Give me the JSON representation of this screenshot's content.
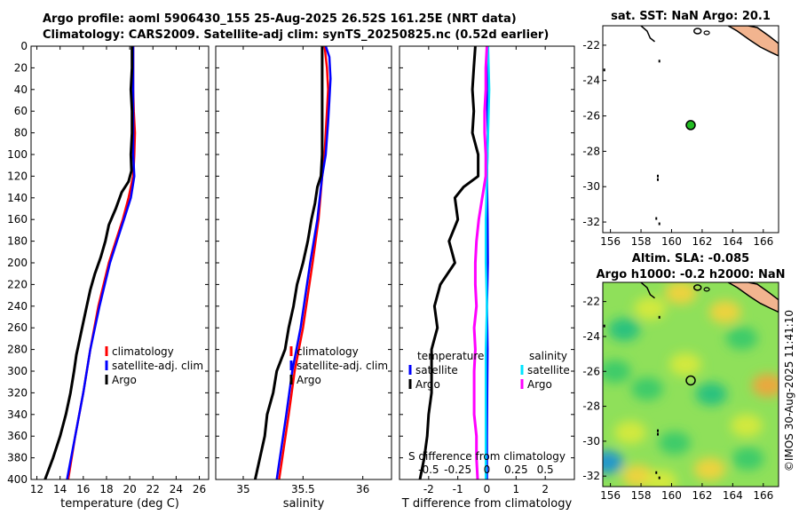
{
  "header": {
    "line1": "Argo profile: aoml 5906430_155 25-Aug-2025 26.52S 161.25E (NRT data)",
    "line2": "Climatology: CARS2009. Satellite-adj clim: synTS_20250825.nc (0.52d earlier)"
  },
  "watermark": "©IMOS 30-Aug-2025 11:41:10",
  "colors": {
    "climatology": "#ff0000",
    "satellite": "#0000ff",
    "argo": "#000000",
    "salinity_satellite": "#00e5ff",
    "salinity_argo": "#ff00ff",
    "land": "#f2b48f",
    "argo_marker": "#22bb22"
  },
  "chart_data": [
    {
      "id": "temp",
      "type": "line",
      "title": "",
      "xlabel": "temperature (deg C)",
      "ylabel": "depth",
      "xlim": [
        11.5,
        26.8
      ],
      "ylim": [
        400,
        0
      ],
      "xticks": [
        12,
        14,
        16,
        18,
        20,
        22,
        24,
        26
      ],
      "yticks": [
        0,
        20,
        40,
        60,
        80,
        100,
        120,
        140,
        160,
        180,
        200,
        220,
        240,
        260,
        280,
        300,
        320,
        340,
        360,
        380,
        400
      ],
      "legend": [
        "climatology",
        "satellite-adj. clim",
        "Argo"
      ],
      "series": [
        {
          "name": "climatology",
          "color": "#ff0000",
          "depth": [
            0,
            20,
            40,
            60,
            80,
            100,
            110,
            120,
            140,
            160,
            180,
            200,
            240,
            280,
            320,
            360,
            400
          ],
          "values": [
            20.3,
            20.3,
            20.3,
            20.35,
            20.45,
            20.4,
            20.35,
            20.3,
            19.9,
            19.4,
            18.8,
            18.2,
            17.3,
            16.6,
            16.0,
            15.3,
            14.7
          ]
        },
        {
          "name": "satellite-adj. clim",
          "color": "#0000ff",
          "depth": [
            0,
            20,
            40,
            60,
            80,
            100,
            120,
            140,
            160,
            180,
            200,
            240,
            280,
            320,
            360,
            400
          ],
          "values": [
            20.3,
            20.3,
            20.3,
            20.3,
            20.3,
            20.3,
            20.4,
            20.1,
            19.5,
            18.9,
            18.3,
            17.4,
            16.6,
            16.0,
            15.3,
            14.6
          ]
        },
        {
          "name": "Argo",
          "color": "#000000",
          "depth": [
            0,
            20,
            40,
            60,
            80,
            100,
            115,
            125,
            135,
            150,
            165,
            180,
            195,
            210,
            225,
            240,
            255,
            270,
            285,
            300,
            320,
            340,
            360,
            380,
            400
          ],
          "values": [
            20.2,
            20.2,
            20.1,
            20.2,
            20.2,
            20.1,
            20.15,
            19.9,
            19.3,
            18.8,
            18.2,
            17.9,
            17.5,
            17.0,
            16.6,
            16.3,
            16.0,
            15.7,
            15.4,
            15.2,
            14.9,
            14.5,
            14.0,
            13.4,
            12.7
          ]
        }
      ]
    },
    {
      "id": "sal",
      "type": "line",
      "title": "",
      "xlabel": "salinity",
      "ylabel": "depth",
      "xlim": [
        34.77,
        36.24
      ],
      "ylim": [
        400,
        0
      ],
      "xticks": [
        35,
        35.5,
        36
      ],
      "xticklabels": [
        "35",
        "35.5",
        "36"
      ],
      "yticks": [
        0,
        20,
        40,
        60,
        80,
        100,
        120,
        140,
        160,
        180,
        200,
        220,
        240,
        260,
        280,
        300,
        320,
        340,
        360,
        380,
        400
      ],
      "legend": [
        "climatology",
        "satellite-adj. clim",
        "Argo"
      ],
      "series": [
        {
          "name": "climatology",
          "color": "#ff0000",
          "depth": [
            0,
            20,
            40,
            60,
            80,
            100,
            120,
            160,
            200,
            260,
            300,
            340,
            400
          ],
          "values": [
            35.68,
            35.7,
            35.71,
            35.7,
            35.69,
            35.68,
            35.66,
            35.63,
            35.58,
            35.5,
            35.43,
            35.38,
            35.3
          ]
        },
        {
          "name": "satellite-adj. clim",
          "color": "#0000ff",
          "depth": [
            0,
            10,
            30,
            50,
            70,
            100,
            120,
            160,
            200,
            260,
            300,
            340,
            400
          ],
          "values": [
            35.69,
            35.72,
            35.73,
            35.72,
            35.71,
            35.69,
            35.66,
            35.62,
            35.56,
            35.48,
            35.41,
            35.36,
            35.28
          ]
        },
        {
          "name": "Argo",
          "color": "#000000",
          "depth": [
            0,
            20,
            60,
            100,
            120,
            130,
            145,
            160,
            180,
            200,
            220,
            240,
            260,
            280,
            300,
            320,
            340,
            360,
            380,
            400
          ],
          "values": [
            35.66,
            35.66,
            35.66,
            35.66,
            35.65,
            35.62,
            35.6,
            35.57,
            35.54,
            35.5,
            35.45,
            35.42,
            35.38,
            35.35,
            35.28,
            35.25,
            35.2,
            35.18,
            35.14,
            35.1
          ]
        }
      ]
    },
    {
      "id": "diff",
      "type": "line",
      "title": "",
      "xlabel": "T difference from climatology",
      "xlabel2": "S difference from climatology",
      "ylabel": "depth",
      "xlim": [
        -3.0,
        3.0
      ],
      "ylim": [
        400,
        0
      ],
      "xticks": [
        -2,
        -1,
        0,
        1,
        2
      ],
      "xticks2": [
        -0.5,
        -0.25,
        0,
        0.25,
        0.5
      ],
      "xticklabels2": [
        "-0.5",
        "-0.25",
        "0",
        "0.25",
        "0.5"
      ],
      "yticks": [
        0,
        20,
        40,
        60,
        80,
        100,
        120,
        140,
        160,
        180,
        200,
        220,
        240,
        260,
        280,
        300,
        320,
        340,
        360,
        380,
        400
      ],
      "legend": [
        "temperature",
        "satellite",
        "Argo",
        "salinity",
        "satellite",
        "Argo"
      ],
      "series": [
        {
          "name": "T satellite",
          "color": "#0000ff",
          "depth": [
            0,
            40,
            80,
            120,
            160,
            200,
            240,
            280,
            320,
            360,
            400
          ],
          "values": [
            0.02,
            0.0,
            0.03,
            0.0,
            0.02,
            0.03,
            0.0,
            0.02,
            0.01,
            0.0,
            0.0
          ]
        },
        {
          "name": "T Argo",
          "color": "#000000",
          "depth": [
            0,
            20,
            40,
            60,
            80,
            100,
            120,
            130,
            140,
            160,
            180,
            200,
            220,
            240,
            260,
            280,
            300,
            320,
            340,
            360,
            380,
            400
          ],
          "values": [
            -0.4,
            -0.45,
            -0.5,
            -0.45,
            -0.5,
            -0.3,
            -0.3,
            -0.8,
            -1.1,
            -1.0,
            -1.3,
            -1.1,
            -1.6,
            -1.8,
            -1.7,
            -1.9,
            -1.9,
            -1.9,
            -2.0,
            -2.05,
            -2.15,
            -2.3
          ]
        },
        {
          "name": "S satellite",
          "color": "#00e5ff",
          "depth": [
            0,
            40,
            80,
            120,
            160,
            200,
            240,
            280,
            320,
            360,
            400
          ],
          "values": [
            0.01,
            0.02,
            0.01,
            0.0,
            -0.01,
            -0.01,
            0.0,
            -0.01,
            -0.01,
            -0.01,
            -0.01
          ]
        },
        {
          "name": "S Argo",
          "color": "#ff00ff",
          "depth": [
            0,
            20,
            40,
            60,
            80,
            100,
            120,
            140,
            160,
            180,
            200,
            220,
            240,
            260,
            280,
            300,
            320,
            340,
            360,
            380,
            400
          ],
          "values": [
            0.0,
            -0.01,
            -0.01,
            -0.02,
            -0.02,
            -0.01,
            -0.01,
            -0.04,
            -0.07,
            -0.09,
            -0.1,
            -0.1,
            -0.09,
            -0.11,
            -0.1,
            -0.11,
            -0.11,
            -0.11,
            -0.09,
            -0.09,
            -0.08
          ]
        }
      ]
    },
    {
      "id": "sst_map",
      "type": "scatter",
      "title": "sat. SST: NaN Argo: 20.1",
      "xlim": [
        155.5,
        167
      ],
      "ylim": [
        -32.6,
        -20.9
      ],
      "xticks": [
        156,
        158,
        160,
        162,
        164,
        166
      ],
      "yticks": [
        -22,
        -24,
        -26,
        -28,
        -30,
        -32
      ],
      "argo_position": {
        "lon": 161.25,
        "lat": -26.52
      }
    },
    {
      "id": "sla_map",
      "type": "heatmap",
      "title": "Altim. SLA: -0.085",
      "title2": "Argo h1000: -0.2 h2000: NaN",
      "xlim": [
        155.5,
        167
      ],
      "ylim": [
        -32.6,
        -20.9
      ],
      "xticks": [
        156,
        158,
        160,
        162,
        164,
        166
      ],
      "yticks": [
        -22,
        -24,
        -26,
        -28,
        -30,
        -32
      ],
      "argo_position": {
        "lon": 161.25,
        "lat": -26.52
      },
      "hotspots": [
        {
          "lon": 160.6,
          "lat": -21.5,
          "level": 0.9
        },
        {
          "lon": 163.5,
          "lat": -22.6,
          "level": 0.85
        },
        {
          "lon": 166.3,
          "lat": -26.8,
          "level": 1.0
        },
        {
          "lon": 160.9,
          "lat": -25.6,
          "level": 0.75
        },
        {
          "lon": 157.3,
          "lat": -29.5,
          "level": 0.8
        },
        {
          "lon": 157.8,
          "lat": -32.0,
          "level": 0.9
        },
        {
          "lon": 162.5,
          "lat": -31.6,
          "level": 0.85
        },
        {
          "lon": 159.3,
          "lat": -32.3,
          "level": 0.7
        },
        {
          "lon": 164.9,
          "lat": -29.1,
          "level": 0.7
        },
        {
          "lon": 158.6,
          "lat": -22.4,
          "level": 0.7
        },
        {
          "lon": 155.8,
          "lat": -31.2,
          "level": -1.0
        },
        {
          "lon": 156.9,
          "lat": -23.6,
          "level": -0.6
        },
        {
          "lon": 164.6,
          "lat": -24.1,
          "level": -0.5
        },
        {
          "lon": 162.6,
          "lat": -27.3,
          "level": -0.55
        },
        {
          "lon": 160.2,
          "lat": -30.1,
          "level": -0.5
        },
        {
          "lon": 158.4,
          "lat": -27.0,
          "level": -0.45
        },
        {
          "lon": 165.0,
          "lat": -31.0,
          "level": -0.4
        },
        {
          "lon": 156.3,
          "lat": -26.0,
          "level": -0.4
        }
      ]
    }
  ]
}
